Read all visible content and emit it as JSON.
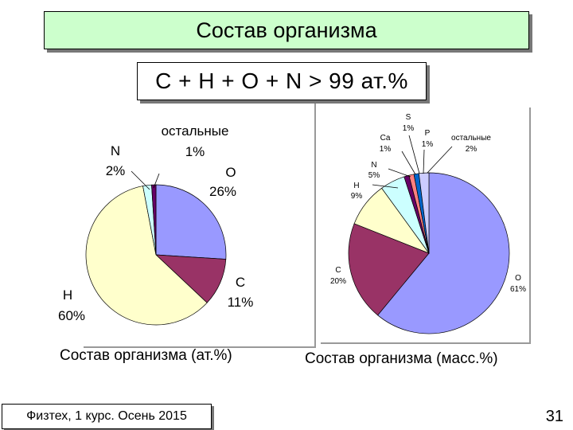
{
  "title": "Состав организма",
  "formula": "C + H + O + N > 99 ат.%",
  "footer": "Физтех, 1 курс. Осень 2015",
  "page_number": "31",
  "chart_data": [
    {
      "type": "pie",
      "title": "Состав организма (ат.%)",
      "labels": [
        "O",
        "C",
        "H",
        "N",
        "остальные"
      ],
      "values": [
        26,
        11,
        60,
        2,
        1
      ],
      "value_labels": [
        "26%",
        "11%",
        "60%",
        "2%",
        "1%"
      ],
      "colors": [
        "#9999ff",
        "#993366",
        "#ffffcc",
        "#ccffff",
        "#660066"
      ]
    },
    {
      "type": "pie",
      "title": "Состав организма (масс.%)",
      "labels": [
        "O",
        "C",
        "H",
        "N",
        "Ca",
        "S",
        "P",
        "остальные"
      ],
      "values": [
        61,
        20,
        9,
        5,
        1,
        1,
        1,
        2
      ],
      "value_labels": [
        "61%",
        "20%",
        "9%",
        "5%",
        "1%",
        "1%",
        "1%",
        "2%"
      ],
      "colors": [
        "#9999ff",
        "#993366",
        "#ffffcc",
        "#ccffff",
        "#660066",
        "#ff8080",
        "#0066cc",
        "#ccccff"
      ]
    }
  ]
}
